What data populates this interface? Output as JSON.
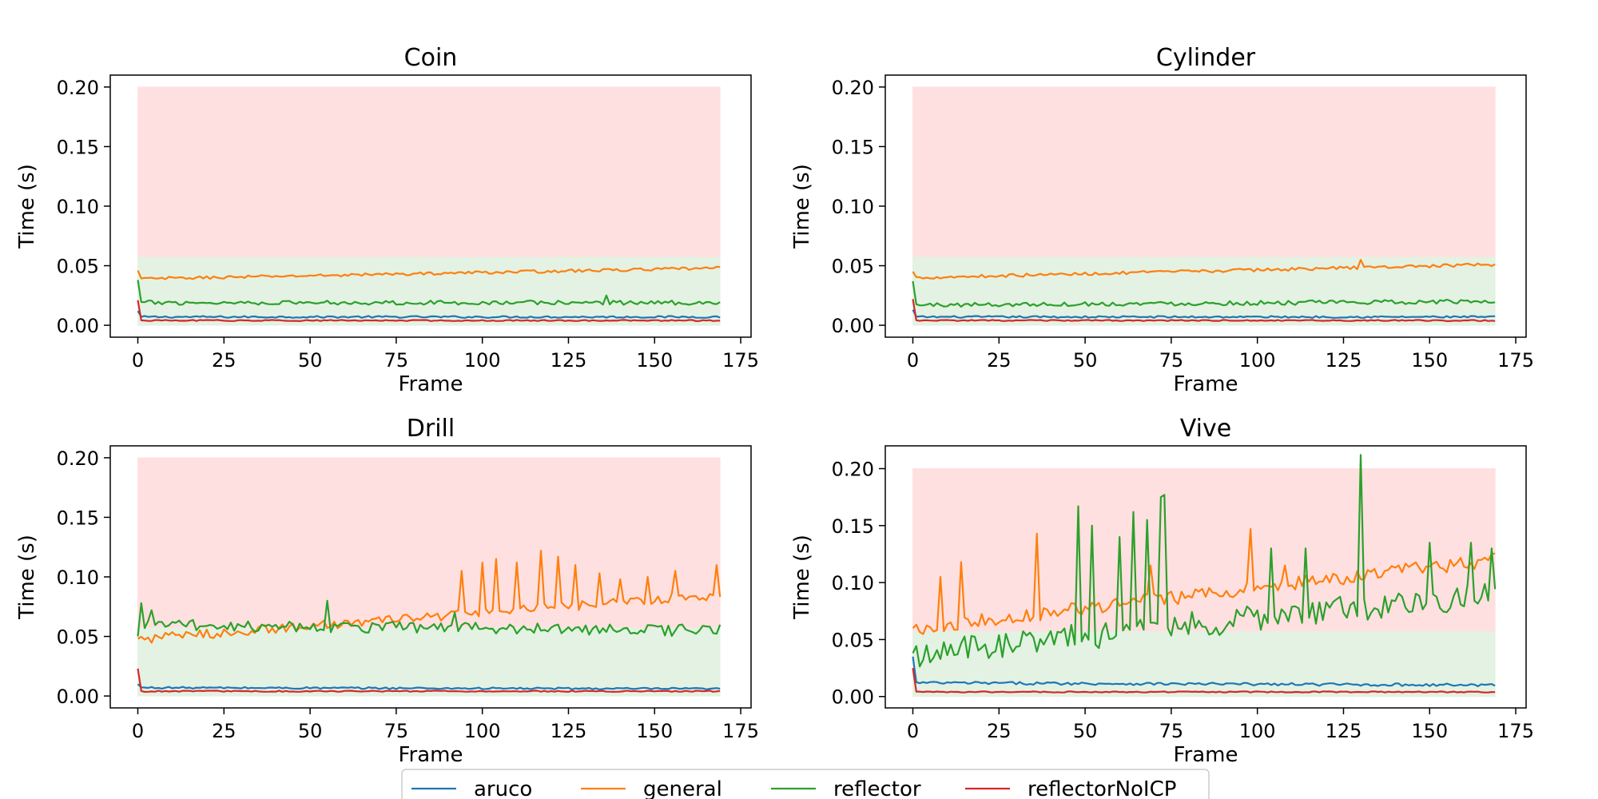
{
  "chart_data": [
    {
      "type": "line",
      "title": "Coin",
      "xlabel": "Frame",
      "ylabel": "Time (s)",
      "xlim": [
        -8,
        178
      ],
      "ylim": [
        -0.01,
        0.21
      ],
      "xticks": [
        0,
        25,
        50,
        75,
        100,
        125,
        150,
        175
      ],
      "yticks": [
        0.0,
        0.05,
        0.1,
        0.15,
        0.2
      ],
      "ytick_labels": [
        "0.00",
        "0.05",
        "0.10",
        "0.15",
        "0.20"
      ],
      "bands": [
        {
          "name": "red-zone",
          "x": [
            0,
            169
          ],
          "y": [
            0.057,
            0.2
          ],
          "color": "#ffe0e0"
        },
        {
          "name": "green-zone",
          "x": [
            0,
            169
          ],
          "y": [
            0.0,
            0.057
          ],
          "color": "#e3f2e3"
        }
      ],
      "series": [
        {
          "name": "aruco",
          "color": "#1f77b4",
          "start": 0.012,
          "base": 0.007,
          "end": 0.007,
          "noise": 0.0008,
          "spikes": []
        },
        {
          "name": "general",
          "color": "#ff7f0e",
          "start": 0.046,
          "base": 0.039,
          "end": 0.048,
          "noise": 0.0012,
          "spikes": []
        },
        {
          "name": "reflector",
          "color": "#2ca02c",
          "start": 0.038,
          "base": 0.019,
          "end": 0.019,
          "noise": 0.0018,
          "spikes": [
            [
              136,
              0.025
            ]
          ]
        },
        {
          "name": "reflectorNoICP",
          "color": "#d62728",
          "start": 0.021,
          "base": 0.004,
          "end": 0.004,
          "noise": 0.0005,
          "spikes": []
        }
      ]
    },
    {
      "type": "line",
      "title": "Cylinder",
      "xlabel": "Frame",
      "ylabel": "Time (s)",
      "xlim": [
        -8,
        178
      ],
      "ylim": [
        -0.01,
        0.21
      ],
      "xticks": [
        0,
        25,
        50,
        75,
        100,
        125,
        150,
        175
      ],
      "yticks": [
        0.0,
        0.05,
        0.1,
        0.15,
        0.2
      ],
      "ytick_labels": [
        "0.00",
        "0.05",
        "0.10",
        "0.15",
        "0.20"
      ],
      "bands": [
        {
          "name": "red-zone",
          "x": [
            0,
            169
          ],
          "y": [
            0.057,
            0.2
          ],
          "color": "#ffe0e0"
        },
        {
          "name": "green-zone",
          "x": [
            0,
            169
          ],
          "y": [
            0.0,
            0.057
          ],
          "color": "#e3f2e3"
        }
      ],
      "series": [
        {
          "name": "aruco",
          "color": "#1f77b4",
          "start": 0.013,
          "base": 0.007,
          "end": 0.007,
          "noise": 0.0008,
          "spikes": []
        },
        {
          "name": "general",
          "color": "#ff7f0e",
          "start": 0.045,
          "base": 0.04,
          "end": 0.051,
          "noise": 0.0013,
          "spikes": [
            [
              130,
              0.055
            ]
          ]
        },
        {
          "name": "reflector",
          "color": "#2ca02c",
          "start": 0.037,
          "base": 0.017,
          "end": 0.02,
          "noise": 0.0018,
          "spikes": []
        },
        {
          "name": "reflectorNoICP",
          "color": "#d62728",
          "start": 0.022,
          "base": 0.004,
          "end": 0.004,
          "noise": 0.0005,
          "spikes": []
        }
      ]
    },
    {
      "type": "line",
      "title": "Drill",
      "xlabel": "Frame",
      "ylabel": "Time (s)",
      "xlim": [
        -8,
        178
      ],
      "ylim": [
        -0.01,
        0.21
      ],
      "xticks": [
        0,
        25,
        50,
        75,
        100,
        125,
        150,
        175
      ],
      "yticks": [
        0.0,
        0.05,
        0.1,
        0.15,
        0.2
      ],
      "ytick_labels": [
        "0.00",
        "0.05",
        "0.10",
        "0.15",
        "0.20"
      ],
      "bands": [
        {
          "name": "red-zone",
          "x": [
            0,
            169
          ],
          "y": [
            0.057,
            0.2
          ],
          "color": "#ffe0e0"
        },
        {
          "name": "green-zone",
          "x": [
            0,
            169
          ],
          "y": [
            0.0,
            0.057
          ],
          "color": "#e3f2e3"
        }
      ],
      "series": [
        {
          "name": "aruco",
          "color": "#1f77b4",
          "start": 0.01,
          "base": 0.007,
          "end": 0.006,
          "noise": 0.0008,
          "spikes": []
        },
        {
          "name": "general",
          "color": "#ff7f0e",
          "start": 0.048,
          "base": 0.048,
          "end": 0.085,
          "noise": 0.004,
          "spikes": [
            [
              94,
              0.105
            ],
            [
              100,
              0.112
            ],
            [
              104,
              0.115
            ],
            [
              110,
              0.112
            ],
            [
              117,
              0.122
            ],
            [
              122,
              0.117
            ],
            [
              127,
              0.11
            ],
            [
              134,
              0.103
            ],
            [
              140,
              0.098
            ],
            [
              148,
              0.1
            ],
            [
              156,
              0.105
            ],
            [
              168,
              0.11
            ]
          ]
        },
        {
          "name": "reflector",
          "color": "#2ca02c",
          "start": 0.05,
          "base": 0.06,
          "end": 0.055,
          "noise": 0.005,
          "spikes": [
            [
              1,
              0.078
            ],
            [
              4,
              0.072
            ],
            [
              55,
              0.08
            ],
            [
              92,
              0.07
            ]
          ]
        },
        {
          "name": "reflectorNoICP",
          "color": "#d62728",
          "start": 0.023,
          "base": 0.004,
          "end": 0.004,
          "noise": 0.0005,
          "spikes": []
        }
      ]
    },
    {
      "type": "line",
      "title": "Vive",
      "xlabel": "Frame",
      "ylabel": "Time (s)",
      "xlim": [
        -8,
        178
      ],
      "ylim": [
        -0.01,
        0.22
      ],
      "xticks": [
        0,
        25,
        50,
        75,
        100,
        125,
        150,
        175
      ],
      "yticks": [
        0.0,
        0.05,
        0.1,
        0.15,
        0.2
      ],
      "ytick_labels": [
        "0.00",
        "0.05",
        "0.10",
        "0.15",
        "0.20"
      ],
      "bands": [
        {
          "name": "red-zone",
          "x": [
            0,
            169
          ],
          "y": [
            0.057,
            0.2
          ],
          "color": "#ffe0e0"
        },
        {
          "name": "green-zone",
          "x": [
            0,
            169
          ],
          "y": [
            0.0,
            0.057
          ],
          "color": "#e3f2e3"
        }
      ],
      "series": [
        {
          "name": "aruco",
          "color": "#1f77b4",
          "start": 0.035,
          "base": 0.012,
          "end": 0.01,
          "noise": 0.0012,
          "spikes": []
        },
        {
          "name": "general",
          "color": "#ff7f0e",
          "start": 0.06,
          "base": 0.06,
          "end": 0.12,
          "noise": 0.006,
          "spikes": [
            [
              8,
              0.105
            ],
            [
              14,
              0.118
            ],
            [
              36,
              0.143
            ],
            [
              69,
              0.115
            ],
            [
              98,
              0.147
            ],
            [
              108,
              0.115
            ],
            [
              168,
              0.125
            ]
          ]
        },
        {
          "name": "reflector",
          "color": "#2ca02c",
          "start": 0.038,
          "base": 0.038,
          "end": 0.09,
          "noise": 0.012,
          "spikes": [
            [
              48,
              0.167
            ],
            [
              52,
              0.15
            ],
            [
              60,
              0.14
            ],
            [
              64,
              0.162
            ],
            [
              68,
              0.155
            ],
            [
              72,
              0.175
            ],
            [
              73,
              0.177
            ],
            [
              104,
              0.13
            ],
            [
              114,
              0.13
            ],
            [
              130,
              0.212
            ],
            [
              150,
              0.135
            ],
            [
              162,
              0.135
            ],
            [
              168,
              0.13
            ]
          ]
        },
        {
          "name": "reflectorNoICP",
          "color": "#d62728",
          "start": 0.025,
          "base": 0.004,
          "end": 0.004,
          "noise": 0.0005,
          "spikes": []
        }
      ]
    }
  ],
  "legend": {
    "placement": "bottom-center",
    "entries": [
      {
        "label": "aruco",
        "color": "#1f77b4"
      },
      {
        "label": "general",
        "color": "#ff7f0e"
      },
      {
        "label": "reflector",
        "color": "#2ca02c"
      },
      {
        "label": "reflectorNoICP",
        "color": "#d62728"
      }
    ]
  }
}
